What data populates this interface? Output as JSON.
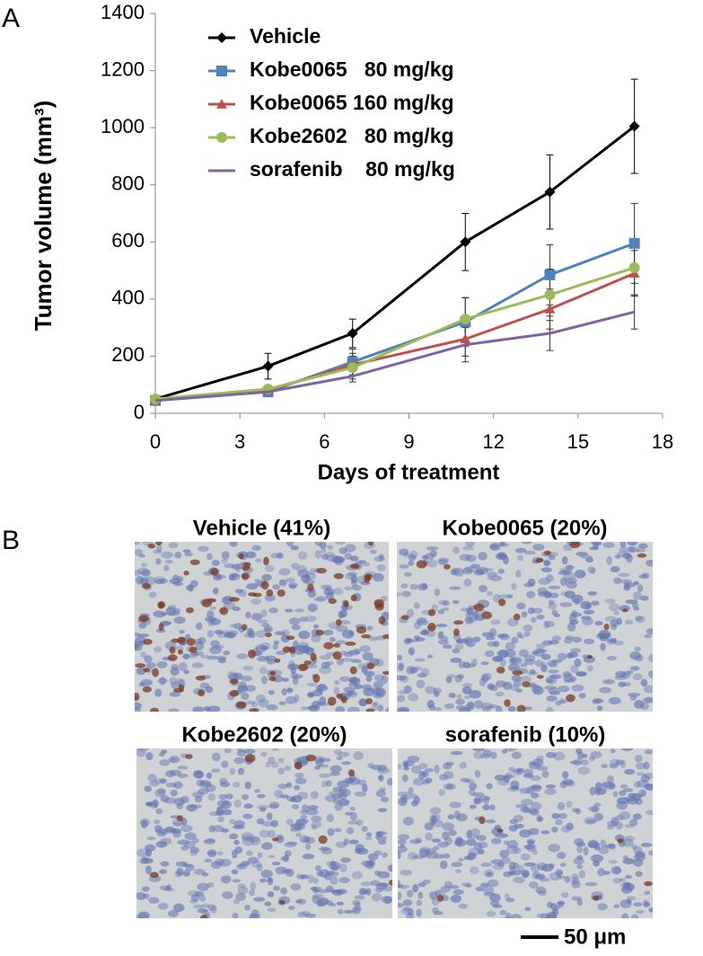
{
  "chart_data": {
    "type": "line",
    "x_label": "Days of treatment",
    "y_label": "Tumor volume (mm³)",
    "x": [
      0,
      4,
      7,
      11,
      14,
      17
    ],
    "xlim": [
      0,
      18
    ],
    "xticks": [
      0,
      3,
      6,
      9,
      12,
      15,
      18
    ],
    "ylim": [
      0,
      1400
    ],
    "yticks": [
      0,
      200,
      400,
      600,
      800,
      1000,
      1200,
      1400
    ],
    "legend": "upper left",
    "series": [
      {
        "name": "Vehicle",
        "color": "#000000",
        "marker": "diamond",
        "values": [
          50,
          165,
          280,
          600,
          775,
          1005
        ],
        "errors": [
          5,
          45,
          50,
          100,
          130,
          165
        ]
      },
      {
        "name": "Kobe0065   80 mg/kg",
        "color": "#4f81bd",
        "marker": "square",
        "values": [
          45,
          75,
          180,
          320,
          485,
          595
        ],
        "errors": [
          5,
          15,
          45,
          85,
          105,
          140
        ]
      },
      {
        "name": "Kobe0065 160 mg/kg",
        "color": "#c0504d",
        "marker": "triangle",
        "values": [
          45,
          80,
          170,
          260,
          365,
          490
        ],
        "errors": [
          5,
          10,
          40,
          60,
          70,
          80
        ]
      },
      {
        "name": "Kobe2602   80 mg/kg",
        "color": "#9bbb59",
        "marker": "circle",
        "values": [
          50,
          85,
          160,
          330,
          415,
          510
        ],
        "errors": [
          5,
          10,
          40,
          75,
          90,
          95
        ]
      },
      {
        "name": "sorafenib    80 mg/kg",
        "color": "#8064a2",
        "marker": "none",
        "values": [
          45,
          75,
          130,
          240,
          280,
          355
        ],
        "errors": [
          5,
          10,
          20,
          60,
          60,
          60
        ]
      }
    ]
  },
  "panel_labels": [
    "A",
    "B"
  ],
  "micrographs": [
    {
      "title": "Vehicle (41%)"
    },
    {
      "title": "Kobe0065 (20%)"
    },
    {
      "title": "Kobe2602 (20%)"
    },
    {
      "title": "sorafenib (10%)"
    }
  ],
  "scale_bar": "50 μm"
}
